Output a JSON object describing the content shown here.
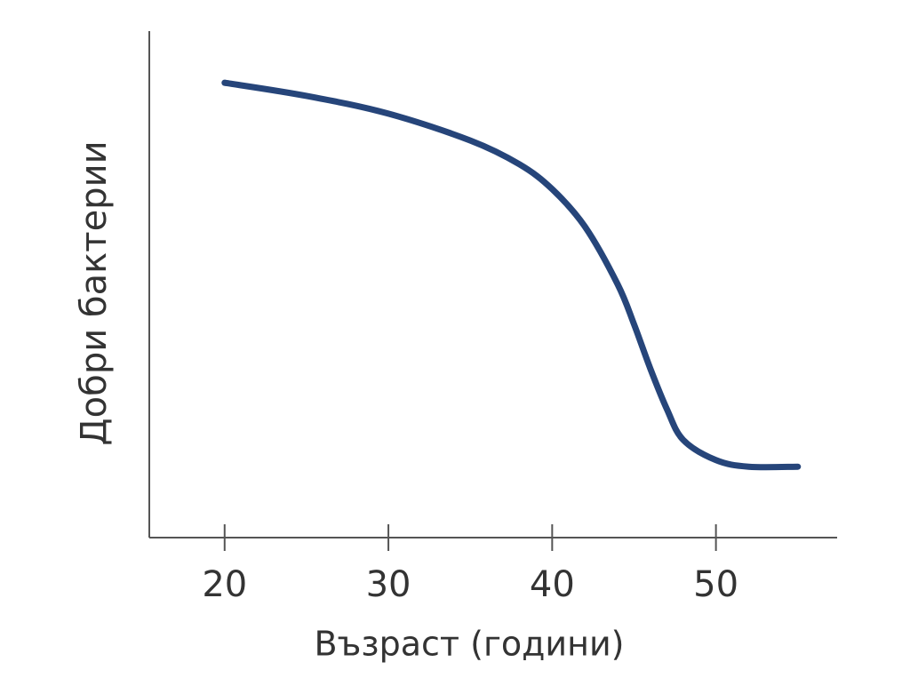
{
  "chart_data": {
    "type": "line",
    "x_label": "Възраст (години)",
    "y_label": "Добри бактерии",
    "x": [
      20,
      25,
      30,
      35,
      38,
      40,
      42,
      44,
      45,
      46,
      47,
      48,
      50,
      52,
      55
    ],
    "series": [
      {
        "color": "#26457a",
        "values": [
          89.8,
          87.2,
          83.7,
          78.4,
          73.7,
          68.8,
          61.4,
          50,
          42.1,
          33.3,
          25.4,
          19.3,
          15.3,
          14,
          14
        ]
      }
    ],
    "xlim": [
      15.4,
      57.4
    ],
    "xticks": [
      20,
      30,
      40,
      50
    ],
    "ylim": [
      0,
      100
    ]
  }
}
